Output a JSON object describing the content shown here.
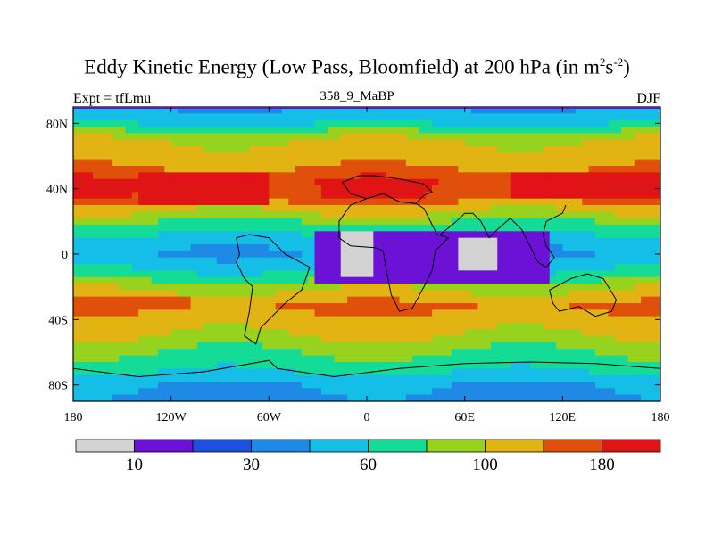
{
  "header": {
    "title_main": "Eddy Kinetic Energy (Low Pass, Bloomfield) at 200 hPa (in m",
    "title_sup1": "2",
    "title_mid": "s",
    "title_sup2": "-2",
    "title_end": ")",
    "subtitle": "358_9_MaBP",
    "expt_label": "Expt = tfLmu",
    "season": "DJF"
  },
  "chart_data": {
    "type": "heatmap",
    "title": "Eddy Kinetic Energy (Low Pass, Bloomfield) at 200 hPa (in m2s-2)",
    "x_ticks": [
      "180",
      "120W",
      "60W",
      "0",
      "60E",
      "120E",
      "180"
    ],
    "x_tick_values": [
      -180,
      -120,
      -60,
      0,
      60,
      120,
      180
    ],
    "y_ticks": [
      "80N",
      "40N",
      "0",
      "40S",
      "80S"
    ],
    "y_tick_values": [
      80,
      40,
      0,
      -40,
      -80
    ],
    "xlim": [
      -180,
      180
    ],
    "ylim": [
      -90,
      90
    ],
    "colorbar": {
      "levels": [
        0,
        10,
        20,
        30,
        45,
        60,
        80,
        100,
        140,
        180,
        220
      ],
      "labels": [
        "10",
        "30",
        "60",
        "100",
        "180"
      ],
      "label_levels": [
        10,
        30,
        60,
        100,
        180
      ],
      "colors": [
        "#d3d3d3",
        "#6b12d6",
        "#1e50e0",
        "#1e8ae6",
        "#14bee6",
        "#14dc96",
        "#96d21e",
        "#e1b414",
        "#e0500a",
        "#e01414"
      ]
    },
    "contours": [
      {
        "level": 220,
        "region": "global",
        "lat": [
          90,
          80,
          70,
          55,
          45,
          35,
          28,
          20,
          10,
          0,
          -10,
          -18,
          -25,
          -32,
          -40,
          -50,
          -60,
          -70,
          -80,
          -90
        ],
        "value": [
          45,
          58,
          100,
          130,
          175,
          170,
          110,
          80,
          55,
          45,
          60,
          85,
          110,
          150,
          120,
          100,
          80,
          65,
          45,
          40
        ]
      },
      {
        "level": 10,
        "region": "west_pacific_band",
        "lon": [
          90,
          180
        ],
        "lat": [
          35,
          48
        ],
        "value": 200
      },
      {
        "level": 10,
        "region": "atlantic_africa_jet",
        "lon": [
          -140,
          -60
        ],
        "lat": [
          30,
          48
        ],
        "value": 200
      },
      {
        "level": 10,
        "region": "africa_low",
        "lon": [
          -15,
          5
        ],
        "lat": [
          -12,
          12
        ],
        "value": 5
      },
      {
        "level": 10,
        "region": "indonesia_low",
        "lon": [
          55,
          80
        ],
        "lat": [
          -8,
          8
        ],
        "value": 5
      },
      {
        "level": 10,
        "region": "tropical_core",
        "lon": [
          -30,
          110
        ],
        "lat": [
          -18,
          14
        ],
        "value": 15
      },
      {
        "level": 10,
        "region": "south_atlantic_jet",
        "lon": [
          -160,
          -110
        ],
        "lat": [
          -35,
          -25
        ],
        "value": 180
      }
    ]
  }
}
